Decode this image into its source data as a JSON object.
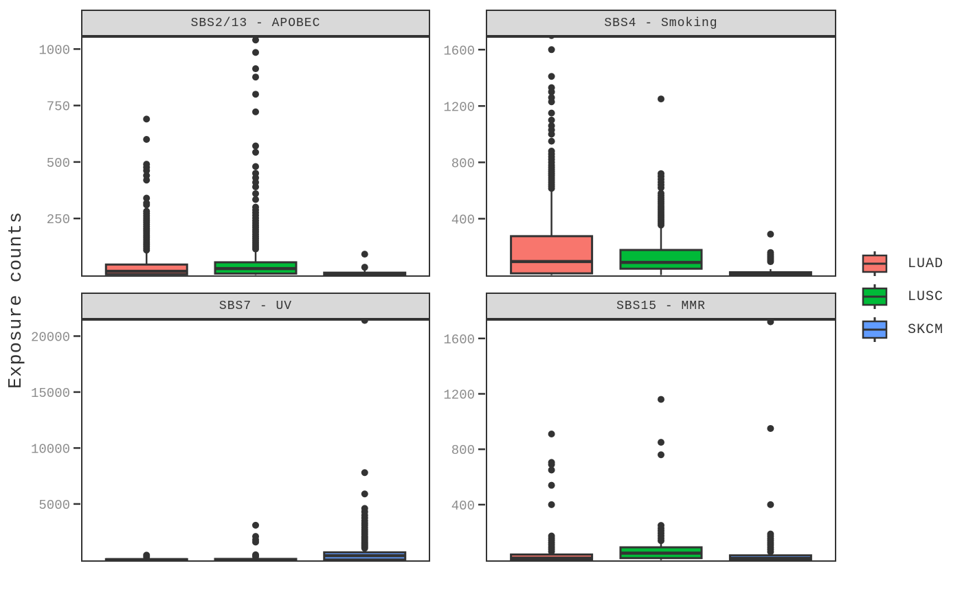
{
  "figure": {
    "y_axis_title": "Exposure counts",
    "background": "#ffffff",
    "panel_border_color": "#333333",
    "strip_fill": "#D9D9D9",
    "line_color": "#333333",
    "tick_label_color": "#8C8C8C",
    "grid": "off",
    "x_axis_labels": "none",
    "legend_position": "right"
  },
  "legend": {
    "items": [
      {
        "label": "LUAD",
        "color": "#F8766D"
      },
      {
        "label": "LUSC",
        "color": "#00BA38"
      },
      {
        "label": "SKCM",
        "color": "#619CFF"
      }
    ]
  },
  "chart_data": [
    {
      "type": "boxplot",
      "title": "SBS2/13 - APOBEC",
      "ylabel": "Exposure counts",
      "ylim": [
        -8,
        1056
      ],
      "yticks": [
        250,
        500,
        750,
        1000
      ],
      "categories": [
        "LUAD",
        "LUSC",
        "SKCM"
      ],
      "groups": [
        {
          "name": "LUAD",
          "color": "#F8766D",
          "q1": 3,
          "median": 16,
          "q3": 46,
          "whisker_low": 0,
          "whisker_high": 108,
          "outliers": [
            110,
            118,
            126,
            134,
            142,
            150,
            158,
            166,
            174,
            182,
            190,
            198,
            206,
            215,
            224,
            233,
            242,
            252,
            262,
            272,
            282,
            310,
            318,
            340,
            420,
            440,
            462,
            476,
            490,
            600,
            690
          ]
        },
        {
          "name": "LUSC",
          "color": "#00BA38",
          "q1": 6,
          "median": 28,
          "q3": 56,
          "whisker_low": 0,
          "whisker_high": 112,
          "outliers": [
            115,
            124,
            133,
            142,
            151,
            160,
            170,
            180,
            190,
            200,
            210,
            220,
            230,
            240,
            252,
            264,
            276,
            288,
            300,
            334,
            360,
            390,
            410,
            430,
            450,
            480,
            543,
            571,
            722,
            800,
            876,
            913,
            985,
            1040,
            1058
          ]
        },
        {
          "name": "SKCM",
          "color": "#619CFF",
          "q1": 0,
          "median": 4,
          "q3": 10,
          "whisker_low": 0,
          "whisker_high": 22,
          "outliers": [
            34,
            92
          ]
        }
      ]
    },
    {
      "type": "boxplot",
      "title": "SBS4 - Smoking",
      "ylabel": "Exposure counts",
      "ylim": [
        -12,
        1694
      ],
      "yticks": [
        400,
        800,
        1200,
        1600
      ],
      "categories": [
        "LUAD",
        "LUSC",
        "SKCM"
      ],
      "groups": [
        {
          "name": "LUAD",
          "color": "#F8766D",
          "q1": 12,
          "median": 96,
          "q3": 276,
          "whisker_low": 0,
          "whisker_high": 600,
          "outliers": [
            615,
            630,
            645,
            660,
            675,
            690,
            705,
            720,
            735,
            750,
            765,
            780,
            800,
            820,
            840,
            860,
            880,
            950,
            1000,
            1030,
            1060,
            1100,
            1150,
            1230,
            1260,
            1300,
            1330,
            1410,
            1600,
            1700
          ]
        },
        {
          "name": "LUSC",
          "color": "#00BA38",
          "q1": 45,
          "median": 90,
          "q3": 178,
          "whisker_low": 0,
          "whisker_high": 345,
          "outliers": [
            355,
            368,
            381,
            394,
            407,
            420,
            434,
            448,
            462,
            476,
            490,
            505,
            520,
            535,
            550,
            565,
            580,
            620,
            640,
            660,
            680,
            700,
            720,
            1250
          ]
        },
        {
          "name": "SKCM",
          "color": "#619CFF",
          "q1": 0,
          "median": 5,
          "q3": 20,
          "whisker_low": 0,
          "whisker_high": 42,
          "outliers": [
            95,
            105,
            115,
            125,
            135,
            148,
            160,
            290
          ]
        }
      ]
    },
    {
      "type": "boxplot",
      "title": "SBS7 - UV",
      "ylabel": "Exposure counts",
      "ylim": [
        -160,
        21500
      ],
      "yticks": [
        5000,
        10000,
        15000,
        20000
      ],
      "categories": [
        "LUAD",
        "LUSC",
        "SKCM"
      ],
      "groups": [
        {
          "name": "LUAD",
          "color": "#F8766D",
          "q1": 0,
          "median": 25,
          "q3": 70,
          "whisker_low": 0,
          "whisker_high": 150,
          "outliers": [
            280,
            430
          ]
        },
        {
          "name": "LUSC",
          "color": "#00BA38",
          "q1": 0,
          "median": 30,
          "q3": 90,
          "whisker_low": 0,
          "whisker_high": 200,
          "outliers": [
            300,
            380,
            460,
            1600,
            1800,
            2100,
            3100
          ]
        },
        {
          "name": "SKCM",
          "color": "#619CFF",
          "q1": 40,
          "median": 380,
          "q3": 680,
          "whisker_low": 0,
          "whisker_high": 920,
          "outliers": [
            1050,
            1130,
            1210,
            1290,
            1370,
            1450,
            1530,
            1620,
            1710,
            1800,
            1900,
            2000,
            2100,
            2250,
            2400,
            2550,
            2700,
            2900,
            3100,
            3300,
            3500,
            3750,
            4000,
            4300,
            4600,
            5900,
            7800,
            21400
          ]
        }
      ]
    },
    {
      "type": "boxplot",
      "title": "SBS15 - MMR",
      "ylabel": "Exposure counts",
      "ylim": [
        -12,
        1738
      ],
      "yticks": [
        400,
        800,
        1200,
        1600
      ],
      "categories": [
        "LUAD",
        "LUSC",
        "SKCM"
      ],
      "groups": [
        {
          "name": "LUAD",
          "color": "#F8766D",
          "q1": 0,
          "median": 14,
          "q3": 40,
          "whisker_low": 0,
          "whisker_high": 55,
          "outliers": [
            62,
            78,
            94,
            110,
            126,
            142,
            158,
            174,
            400,
            540,
            650,
            690,
            705,
            910
          ]
        },
        {
          "name": "LUSC",
          "color": "#00BA38",
          "q1": 14,
          "median": 50,
          "q3": 92,
          "whisker_low": 0,
          "whisker_high": 130,
          "outliers": [
            140,
            158,
            176,
            194,
            212,
            230,
            250,
            760,
            850,
            1160
          ]
        },
        {
          "name": "SKCM",
          "color": "#619CFF",
          "q1": 0,
          "median": 12,
          "q3": 34,
          "whisker_low": 0,
          "whisker_high": 48,
          "outliers": [
            60,
            76,
            92,
            108,
            124,
            140,
            156,
            172,
            188,
            400,
            950,
            1720
          ]
        }
      ]
    }
  ]
}
